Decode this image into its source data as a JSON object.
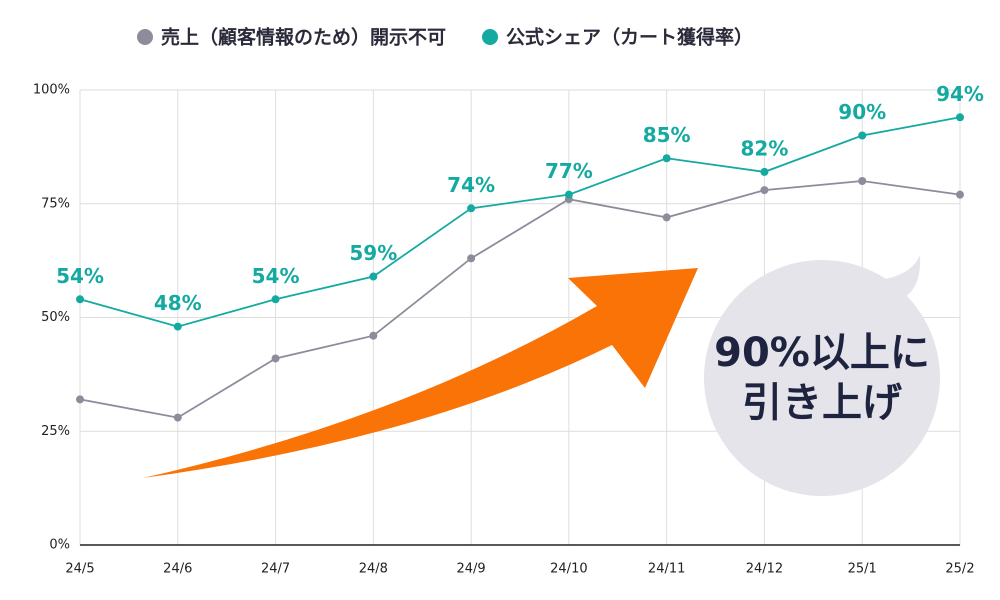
{
  "chart_data": {
    "type": "line",
    "categories": [
      "24/5",
      "24/6",
      "24/7",
      "24/8",
      "24/9",
      "24/10",
      "24/11",
      "24/12",
      "25/1",
      "25/2"
    ],
    "series": [
      {
        "name": "売上（顧客情報のため）開示不可",
        "color": "#8e8c9b",
        "values": [
          32,
          28,
          41,
          46,
          63,
          76,
          72,
          78,
          80,
          77
        ]
      },
      {
        "name": "公式シェア（カート獲得率）",
        "color": "#15aaa1",
        "values": [
          54,
          48,
          54,
          59,
          74,
          77,
          85,
          82,
          90,
          94
        ],
        "value_labels": [
          "54%",
          "48%",
          "54%",
          "59%",
          "74%",
          "77%",
          "85%",
          "82%",
          "90%",
          "94%"
        ]
      }
    ],
    "ylim": [
      0,
      100
    ],
    "yticks": [
      {
        "value": 0,
        "label": "0%"
      },
      {
        "value": 25,
        "label": "25%"
      },
      {
        "value": 50,
        "label": "50%"
      },
      {
        "value": 75,
        "label": "75%"
      },
      {
        "value": 100,
        "label": "100%"
      }
    ],
    "grid": true,
    "legend": "top",
    "annotation": [
      "90%以上に",
      "引き上げ"
    ]
  }
}
